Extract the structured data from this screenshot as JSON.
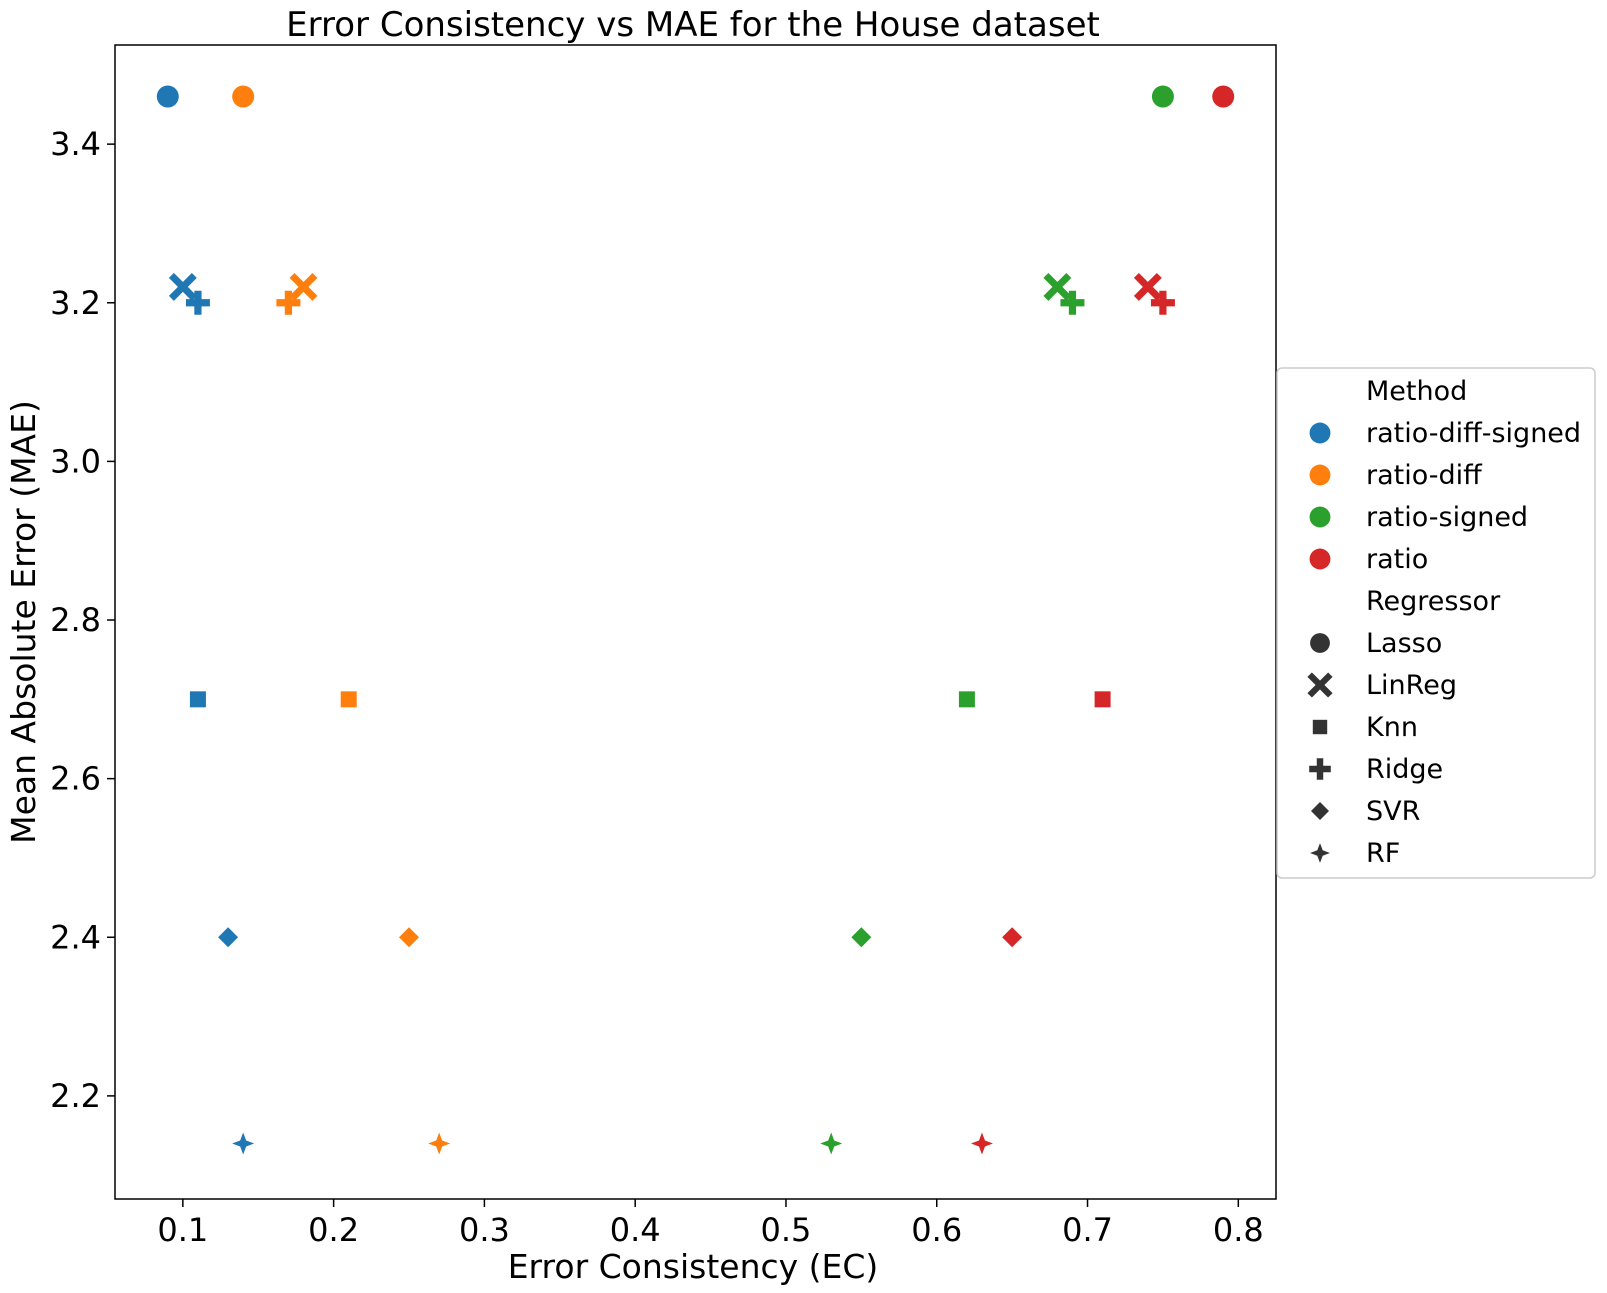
{
  "chart_data": {
    "type": "scatter",
    "title": "Error Consistency vs MAE for the House dataset",
    "xlabel": "Error Consistency (EC)",
    "ylabel": "Mean Absolute Error (MAE)",
    "xlim": [
      0.055,
      0.825
    ],
    "ylim": [
      2.07,
      3.525
    ],
    "xticks": [
      0.1,
      0.2,
      0.3,
      0.4,
      0.5,
      0.6,
      0.7,
      0.8
    ],
    "xtick_labels": [
      "0.1",
      "0.2",
      "0.3",
      "0.4",
      "0.5",
      "0.6",
      "0.7",
      "0.8"
    ],
    "yticks": [
      2.2,
      2.4,
      2.6,
      2.8,
      3.0,
      3.2,
      3.4
    ],
    "ytick_labels": [
      "2.2",
      "2.4",
      "2.6",
      "2.8",
      "3.0",
      "3.2",
      "3.4"
    ],
    "grid": false,
    "legend_position": "outside-right",
    "legend": {
      "hue_title": "Method",
      "style_title": "Regressor",
      "methods": [
        {
          "name": "ratio-diff-signed",
          "color": "#1f77b4"
        },
        {
          "name": "ratio-diff",
          "color": "#ff7f0e"
        },
        {
          "name": "ratio-signed",
          "color": "#2ca02c"
        },
        {
          "name": "ratio",
          "color": "#d62728"
        }
      ],
      "regressors": [
        {
          "name": "Lasso",
          "marker": "circle"
        },
        {
          "name": "LinReg",
          "marker": "x"
        },
        {
          "name": "Knn",
          "marker": "square"
        },
        {
          "name": "Ridge",
          "marker": "plus"
        },
        {
          "name": "SVR",
          "marker": "diamond"
        },
        {
          "name": "RF",
          "marker": "star4"
        }
      ]
    },
    "points": [
      {
        "method": "ratio-diff-signed",
        "regressor": "Lasso",
        "x": 0.09,
        "y": 3.46
      },
      {
        "method": "ratio-diff-signed",
        "regressor": "LinReg",
        "x": 0.1,
        "y": 3.22
      },
      {
        "method": "ratio-diff-signed",
        "regressor": "Ridge",
        "x": 0.11,
        "y": 3.2
      },
      {
        "method": "ratio-diff-signed",
        "regressor": "Knn",
        "x": 0.11,
        "y": 2.7
      },
      {
        "method": "ratio-diff-signed",
        "regressor": "SVR",
        "x": 0.13,
        "y": 2.4
      },
      {
        "method": "ratio-diff-signed",
        "regressor": "RF",
        "x": 0.14,
        "y": 2.14
      },
      {
        "method": "ratio-diff",
        "regressor": "Lasso",
        "x": 0.14,
        "y": 3.46
      },
      {
        "method": "ratio-diff",
        "regressor": "LinReg",
        "x": 0.18,
        "y": 3.22
      },
      {
        "method": "ratio-diff",
        "regressor": "Ridge",
        "x": 0.17,
        "y": 3.2
      },
      {
        "method": "ratio-diff",
        "regressor": "Knn",
        "x": 0.21,
        "y": 2.7
      },
      {
        "method": "ratio-diff",
        "regressor": "SVR",
        "x": 0.25,
        "y": 2.4
      },
      {
        "method": "ratio-diff",
        "regressor": "RF",
        "x": 0.27,
        "y": 2.14
      },
      {
        "method": "ratio-signed",
        "regressor": "Lasso",
        "x": 0.75,
        "y": 3.46
      },
      {
        "method": "ratio-signed",
        "regressor": "LinReg",
        "x": 0.68,
        "y": 3.22
      },
      {
        "method": "ratio-signed",
        "regressor": "Ridge",
        "x": 0.69,
        "y": 3.2
      },
      {
        "method": "ratio-signed",
        "regressor": "Knn",
        "x": 0.62,
        "y": 2.7
      },
      {
        "method": "ratio-signed",
        "regressor": "SVR",
        "x": 0.55,
        "y": 2.4
      },
      {
        "method": "ratio-signed",
        "regressor": "RF",
        "x": 0.53,
        "y": 2.14
      },
      {
        "method": "ratio",
        "regressor": "Lasso",
        "x": 0.79,
        "y": 3.46
      },
      {
        "method": "ratio",
        "regressor": "LinReg",
        "x": 0.74,
        "y": 3.22
      },
      {
        "method": "ratio",
        "regressor": "Ridge",
        "x": 0.75,
        "y": 3.2
      },
      {
        "method": "ratio",
        "regressor": "Knn",
        "x": 0.71,
        "y": 2.7
      },
      {
        "method": "ratio",
        "regressor": "SVR",
        "x": 0.65,
        "y": 2.4
      },
      {
        "method": "ratio",
        "regressor": "RF",
        "x": 0.63,
        "y": 2.14
      }
    ]
  }
}
